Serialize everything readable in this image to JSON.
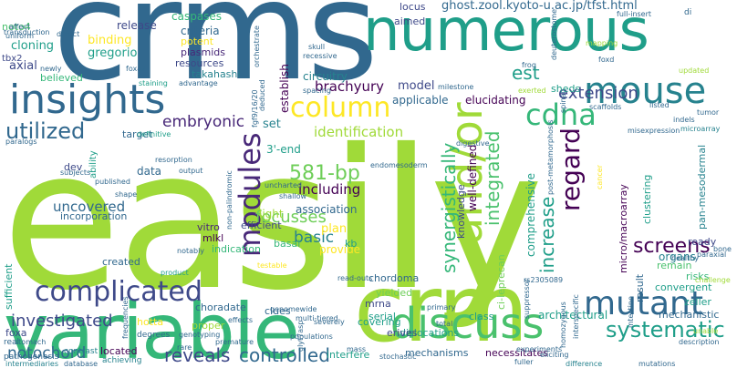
{
  "palette": {
    "p1": "#440154",
    "p2": "#46337f",
    "p3": "#365c8d",
    "p4": "#277f8e",
    "p5": "#1fa187",
    "p6": "#4ac16d",
    "p7": "#a0da39",
    "p8": "#fde725"
  },
  "words": [
    {
      "text": "easily",
      "c": "#a0da39"
    },
    {
      "text": "crms",
      "c": "#31688e"
    },
    {
      "text": "variable",
      "c": "#35b779"
    },
    {
      "text": "crm",
      "c": "#a0da39"
    },
    {
      "text": "numerous",
      "c": "#1f9e89"
    },
    {
      "text": "insights",
      "c": "#31688e"
    },
    {
      "text": "and/or",
      "c": "#a0da39"
    },
    {
      "text": "mouse",
      "c": "#26828e"
    },
    {
      "text": "discuss",
      "c": "#4ac16d"
    },
    {
      "text": "complicated",
      "c": "#3e4989"
    },
    {
      "text": "mutant",
      "c": "#31688e"
    },
    {
      "text": "modules",
      "c": "#482878"
    },
    {
      "text": "regard",
      "c": "#440154"
    },
    {
      "text": "column",
      "c": "#fde725"
    },
    {
      "text": "cdna",
      "c": "#35b779"
    },
    {
      "text": "utilized",
      "c": "#31688e"
    },
    {
      "text": "systematic",
      "c": "#1f9e89"
    },
    {
      "text": "reveals",
      "c": "#3e4989"
    },
    {
      "text": "controlled",
      "c": "#31688e"
    },
    {
      "text": "investigated",
      "c": "#3e4989"
    },
    {
      "text": "screens",
      "c": "#440154"
    },
    {
      "text": "increase",
      "c": "#1f9e89"
    },
    {
      "text": "integrated",
      "c": "#4ac16d"
    },
    {
      "text": "synergistically",
      "c": "#35b779"
    },
    {
      "text": "581-bp",
      "c": "#6ece58"
    },
    {
      "text": "extension",
      "c": "#3e4989"
    },
    {
      "text": "focusses",
      "c": "#6ece58"
    },
    {
      "text": "notochord",
      "c": "#31688e"
    },
    {
      "text": "embryonic",
      "c": "#482878"
    },
    {
      "text": "basic",
      "c": "#26828e"
    },
    {
      "text": "identification",
      "c": "#a0da39"
    },
    {
      "text": "uncovered",
      "c": "#31688e"
    },
    {
      "text": "including",
      "c": "#440154"
    },
    {
      "text": "brachyury",
      "c": "#440154"
    },
    {
      "text": "est",
      "c": "#1f9e89"
    },
    {
      "text": "ghost.zool.kyoto-u.ac.jp/tfst.html",
      "c": "#31688e"
    },
    {
      "text": "cloning",
      "c": "#1f9e89"
    },
    {
      "text": "axial",
      "c": "#3e4989"
    },
    {
      "text": "gregorio",
      "c": "#1f9e89"
    },
    {
      "text": "binding",
      "c": "#fde725"
    },
    {
      "text": "release",
      "c": "#3e4989"
    },
    {
      "text": "caspases",
      "c": "#35b779"
    },
    {
      "text": "criteria",
      "c": "#31688e"
    },
    {
      "text": "potent",
      "c": "#fde725"
    },
    {
      "text": "plasmids",
      "c": "#482878"
    },
    {
      "text": "resources",
      "c": "#3e4989"
    },
    {
      "text": "takahashi",
      "c": "#26828e"
    },
    {
      "text": "believed",
      "c": "#35b779"
    },
    {
      "text": "circuitry",
      "c": "#26828e"
    },
    {
      "text": "model",
      "c": "#3e4989"
    },
    {
      "text": "applicable",
      "c": "#31688e"
    },
    {
      "text": "establish",
      "c": "#440154"
    },
    {
      "text": "elucidating",
      "c": "#440154"
    },
    {
      "text": "sheds",
      "c": "#1f9e89"
    },
    {
      "text": "locus",
      "c": "#3e4989"
    },
    {
      "text": "aimed",
      "c": "#3e4989"
    },
    {
      "text": "set",
      "c": "#26828e"
    },
    {
      "text": "target",
      "c": "#31688e"
    },
    {
      "text": "dev",
      "c": "#3e4989"
    },
    {
      "text": "data",
      "c": "#31688e"
    },
    {
      "text": "3'-end",
      "c": "#1f9e89"
    },
    {
      "text": "light",
      "c": "#a0da39"
    },
    {
      "text": "association",
      "c": "#31688e"
    },
    {
      "text": "plan",
      "c": "#fde725"
    },
    {
      "text": "provide",
      "c": "#fde725"
    },
    {
      "text": "knowledge",
      "c": "#3e4989"
    },
    {
      "text": "well-defined",
      "c": "#440154"
    },
    {
      "text": "comprehensive",
      "c": "#1f9e89"
    },
    {
      "text": "clustering",
      "c": "#1f9e89"
    },
    {
      "text": "pan-mesodermal",
      "c": "#26828e"
    },
    {
      "text": "micro/macroarray",
      "c": "#440154"
    },
    {
      "text": "organs",
      "c": "#26828e"
    },
    {
      "text": "remain",
      "c": "#4ac16d"
    },
    {
      "text": "ready",
      "c": "#3e4989"
    },
    {
      "text": "risks",
      "c": "#35b779"
    },
    {
      "text": "convergent",
      "c": "#1f9e89"
    },
    {
      "text": "zeller",
      "c": "#1f9e89"
    },
    {
      "text": "result",
      "c": "#31688e"
    },
    {
      "text": "architectural",
      "c": "#1f9e89"
    },
    {
      "text": "mechanistic",
      "c": "#31688e"
    },
    {
      "text": "incorporation",
      "c": "#31688e"
    },
    {
      "text": "efficient",
      "c": "#3e4989"
    },
    {
      "text": "vitro",
      "c": "#482878"
    },
    {
      "text": "mlkl",
      "c": "#440154"
    },
    {
      "text": "basal",
      "c": "#35b779"
    },
    {
      "text": "kb",
      "c": "#1f9e89"
    },
    {
      "text": "indication",
      "c": "#35b779"
    },
    {
      "text": "created",
      "c": "#31688e"
    },
    {
      "text": "chordoma",
      "c": "#31688e"
    },
    {
      "text": "yielded",
      "c": "#6ece58"
    },
    {
      "text": "mrna",
      "c": "#3e4989"
    },
    {
      "text": "class",
      "c": "#1f9e89"
    },
    {
      "text": "serial",
      "c": "#1f9e89"
    },
    {
      "text": "choradate",
      "c": "#31688e"
    },
    {
      "text": "clues",
      "c": "#31688e"
    },
    {
      "text": "dislocations",
      "c": "#1f9e89"
    },
    {
      "text": "covering",
      "c": "#1f9e89"
    },
    {
      "text": "erives",
      "c": "#3e4989"
    },
    {
      "text": "mechanisms",
      "c": "#31688e"
    },
    {
      "text": "necessitates",
      "c": "#440154"
    },
    {
      "text": "hotta",
      "c": "#fde725"
    },
    {
      "text": "proper",
      "c": "#a0da39"
    },
    {
      "text": "located",
      "c": "#440154"
    },
    {
      "text": "interfere",
      "c": "#1f9e89"
    },
    {
      "text": "sufficient",
      "c": "#1f9e89"
    },
    {
      "text": "foxa",
      "c": "#3e4989"
    },
    {
      "text": "ci-leprecan",
      "c": "#6ece58"
    },
    {
      "text": "noto4",
      "c": "#4ac16d"
    },
    {
      "text": "tbx2",
      "c": "#3e4989"
    },
    {
      "text": "ability",
      "c": "#1f9e89"
    },
    {
      "text": "real",
      "c": "#31688e"
    },
    {
      "text": "pathogenesis",
      "c": "#31688e"
    },
    {
      "text": "contrast",
      "c": "#26828e"
    },
    {
      "text": "achieving",
      "c": "#26828e"
    },
    {
      "text": "degrees",
      "c": "#31688e"
    },
    {
      "text": "intermediaries",
      "c": "#26828e"
    },
    {
      "text": "database",
      "c": "#31688e"
    },
    {
      "text": "stochastic",
      "c": "#31688e"
    },
    {
      "text": "difference",
      "c": "#26828e"
    },
    {
      "text": "experiments",
      "c": "#31688e"
    },
    {
      "text": "total",
      "c": "#31688e"
    },
    {
      "text": "primary",
      "c": "#31688e"
    },
    {
      "text": "populations",
      "c": "#31688e"
    },
    {
      "text": "severely",
      "c": "#31688e"
    },
    {
      "text": "genotyping",
      "c": "#31688e"
    },
    {
      "text": "premature",
      "c": "#31688e"
    },
    {
      "text": "effects",
      "c": "#31688e"
    },
    {
      "text": "genomewide",
      "c": "#31688e"
    },
    {
      "text": "read-outs",
      "c": "#31688e"
    },
    {
      "text": "multi-tiered",
      "c": "#31688e"
    },
    {
      "text": "testable",
      "c": "#fde725"
    },
    {
      "text": "product",
      "c": "#1f9e89"
    },
    {
      "text": "notably",
      "c": "#31688e"
    },
    {
      "text": "output",
      "c": "#31688e"
    },
    {
      "text": "resorption",
      "c": "#31688e"
    },
    {
      "text": "published",
      "c": "#31688e"
    },
    {
      "text": "shape",
      "c": "#31688e"
    },
    {
      "text": "subjects",
      "c": "#31688e"
    },
    {
      "text": "paralogs",
      "c": "#31688e"
    },
    {
      "text": "definitive",
      "c": "#1f9e89"
    },
    {
      "text": "staining",
      "c": "#1f9e89"
    },
    {
      "text": "advantage",
      "c": "#31688e"
    },
    {
      "text": "newly",
      "c": "#31688e"
    },
    {
      "text": "foxa2",
      "c": "#31688e"
    },
    {
      "text": "uniform",
      "c": "#31688e"
    },
    {
      "text": "defect",
      "c": "#31688e"
    },
    {
      "text": "affect",
      "c": "#31688e"
    },
    {
      "text": "transduction",
      "c": "#31688e"
    },
    {
      "text": "skull",
      "c": "#31688e"
    },
    {
      "text": "recessive",
      "c": "#31688e"
    },
    {
      "text": "spacing",
      "c": "#31688e"
    },
    {
      "text": "milestone",
      "c": "#31688e"
    },
    {
      "text": "frog",
      "c": "#31688e"
    },
    {
      "text": "deuterostome",
      "c": "#31688e"
    },
    {
      "text": "mapping",
      "c": "#a0da39"
    },
    {
      "text": "full-insert",
      "c": "#31688e"
    },
    {
      "text": "di",
      "c": "#31688e"
    },
    {
      "text": "foxd",
      "c": "#31688e"
    },
    {
      "text": "updated",
      "c": "#a0da39"
    },
    {
      "text": "scaffolds",
      "c": "#31688e"
    },
    {
      "text": "listed",
      "c": "#31688e"
    },
    {
      "text": "tumor",
      "c": "#31688e"
    },
    {
      "text": "indels",
      "c": "#31688e"
    },
    {
      "text": "microarray",
      "c": "#26828e"
    },
    {
      "text": "misexpression",
      "c": "#31688e"
    },
    {
      "text": "cancer",
      "c": "#fde725"
    },
    {
      "text": "post-metamorphosis",
      "c": "#31688e"
    },
    {
      "text": "digestive",
      "c": "#31688e"
    },
    {
      "text": "endomesoderm",
      "c": "#31688e"
    },
    {
      "text": "uncharted",
      "c": "#31688e"
    },
    {
      "text": "shallow",
      "c": "#31688e"
    },
    {
      "text": "non-palindromic",
      "c": "#31688e"
    },
    {
      "text": "fgf9/16/20",
      "c": "#31688e"
    },
    {
      "text": "deduced",
      "c": "#31688e"
    },
    {
      "text": "orchestrate",
      "c": "#31688e"
    },
    {
      "text": "exerted",
      "c": "#a0da39"
    },
    {
      "text": "spinal",
      "c": "#31688e"
    },
    {
      "text": "rs2305089",
      "c": "#31688e"
    },
    {
      "text": "suppressor",
      "c": "#31688e"
    },
    {
      "text": "glyt7asp",
      "c": "#31688e"
    },
    {
      "text": "homozygous",
      "c": "#31688e"
    },
    {
      "text": "interspecific",
      "c": "#31688e"
    },
    {
      "text": "intestine",
      "c": "#31688e"
    },
    {
      "text": "eliciting",
      "c": "#31688e"
    },
    {
      "text": "unable",
      "c": "#a0da39"
    },
    {
      "text": "description",
      "c": "#31688e"
    },
    {
      "text": "challenge",
      "c": "#a0da39"
    },
    {
      "text": "healthy",
      "c": "#31688e"
    },
    {
      "text": "paraxial",
      "c": "#31688e"
    },
    {
      "text": "bone",
      "c": "#31688e"
    },
    {
      "text": "stomach",
      "c": "#31688e"
    },
    {
      "text": "frequencies",
      "c": "#31688e"
    },
    {
      "text": "rare",
      "c": "#31688e"
    },
    {
      "text": "mass",
      "c": "#31688e"
    },
    {
      "text": "fuller",
      "c": "#31688e"
    },
    {
      "text": "mutations",
      "c": "#31688e"
    }
  ]
}
